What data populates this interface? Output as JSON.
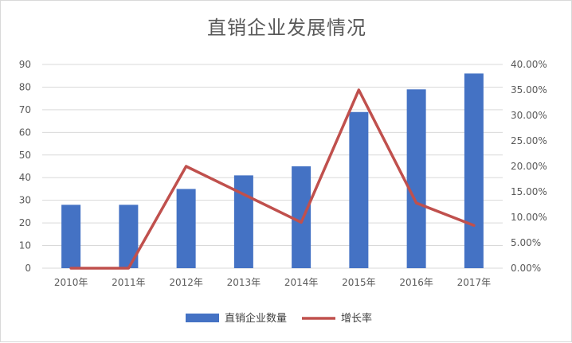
{
  "chart_data": {
    "type": "bar",
    "title": "直销企业发展情况",
    "categories": [
      "2010年",
      "2011年",
      "2012年",
      "2013年",
      "2014年",
      "2015年",
      "2016年",
      "2017年"
    ],
    "series": [
      {
        "name": "直销企业数量",
        "type": "bar",
        "axis": "left",
        "color": "#4472c4",
        "values": [
          28,
          28,
          35,
          41,
          45,
          69,
          79,
          86
        ]
      },
      {
        "name": "增长率",
        "type": "line",
        "axis": "right",
        "color": "#c0504d",
        "values": [
          0.0,
          0.0,
          20.0,
          14.5,
          9.0,
          35.0,
          12.8,
          8.4
        ]
      }
    ],
    "y_left": {
      "min": 0,
      "max": 90,
      "step": 10,
      "tick_labels": [
        "0",
        "10",
        "20",
        "30",
        "40",
        "50",
        "60",
        "70",
        "80",
        "90"
      ]
    },
    "y_right": {
      "min": 0,
      "max": 40,
      "step": 5,
      "tick_labels": [
        "0.00%",
        "5.00%",
        "10.00%",
        "15.00%",
        "20.00%",
        "25.00%",
        "30.00%",
        "35.00%",
        "40.00%"
      ]
    },
    "grid": true,
    "legend_position": "bottom"
  }
}
